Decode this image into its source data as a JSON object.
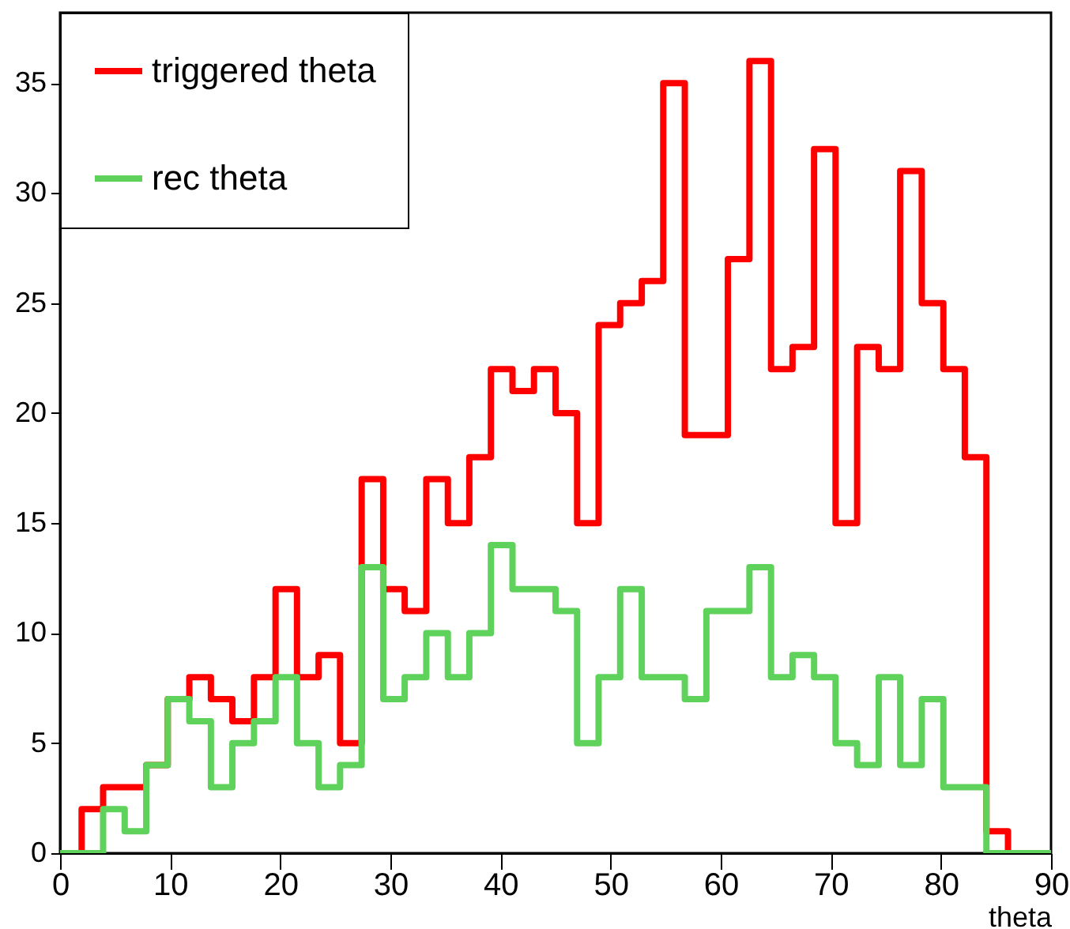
{
  "chart_data": {
    "type": "histogram",
    "xlabel": "theta",
    "bins": [
      0,
      1.96,
      3.91,
      5.87,
      7.83,
      9.78,
      11.74,
      13.7,
      15.65,
      17.61,
      19.57,
      21.52,
      23.48,
      25.43,
      27.39,
      29.35,
      31.3,
      33.26,
      35.22,
      37.17,
      39.13,
      41.09,
      43.04,
      45,
      46.96,
      48.91,
      50.87,
      52.83,
      54.78,
      56.74,
      58.7,
      60.65,
      62.61,
      64.57,
      66.52,
      68.48,
      70.43,
      72.39,
      74.35,
      76.3,
      78.26,
      80.22,
      82.17,
      84.13,
      86.09,
      88.04,
      90
    ],
    "series": [
      {
        "name": "triggered theta",
        "color": "#ff0000",
        "values": [
          0,
          2,
          3,
          3,
          4,
          7,
          8,
          7,
          6,
          8,
          12,
          8,
          9,
          5,
          17,
          12,
          11,
          17,
          15,
          18,
          22,
          21,
          22,
          20,
          15,
          24,
          25,
          26,
          35,
          19,
          19,
          27,
          36,
          22,
          23,
          32,
          15,
          23,
          22,
          31,
          25,
          22,
          18,
          1,
          0,
          0
        ]
      },
      {
        "name": "rec theta",
        "color": "#5ed25a",
        "values": [
          0,
          0,
          2,
          1,
          4,
          7,
          6,
          3,
          5,
          6,
          8,
          5,
          3,
          4,
          13,
          7,
          8,
          10,
          8,
          10,
          14,
          12,
          12,
          11,
          5,
          8,
          12,
          8,
          8,
          7,
          11,
          11,
          13,
          8,
          9,
          8,
          5,
          4,
          8,
          4,
          7,
          3,
          3,
          0,
          0,
          0
        ]
      }
    ],
    "xlim": [
      0,
      90
    ],
    "xticks": [
      0,
      10,
      20,
      30,
      40,
      50,
      60,
      70,
      80,
      90
    ],
    "ylim": [
      0,
      38.2
    ],
    "yticks": [
      0,
      5,
      10,
      15,
      20,
      25,
      30,
      35
    ],
    "legend": "top left",
    "grid": false,
    "line_style": "solid"
  }
}
